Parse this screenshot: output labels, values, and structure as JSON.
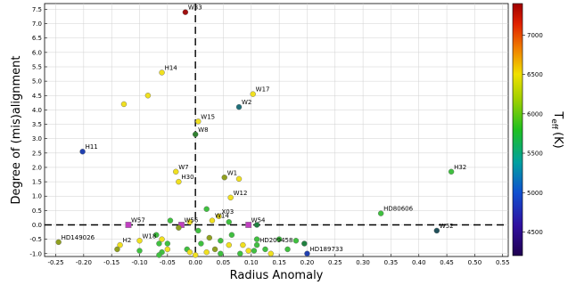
{
  "chart_data": {
    "type": "scatter",
    "title": "",
    "xlabel": "Radius Anomaly",
    "ylabel": "Degree of (mis)alignment",
    "xlim": [
      -0.27,
      0.56
    ],
    "ylim": [
      -1.1,
      7.7
    ],
    "xticks": [
      "-0.25",
      "-0.20",
      "-0.15",
      "-0.10",
      "-0.05",
      "0.00",
      "0.05",
      "0.10",
      "0.15",
      "0.20",
      "0.25",
      "0.30",
      "0.35",
      "0.40",
      "0.45",
      "0.50",
      "0.55"
    ],
    "yticks": [
      "-1.0",
      "-0.5",
      "0.0",
      "0.5",
      "1.0",
      "1.5",
      "2.0",
      "2.5",
      "3.0",
      "3.5",
      "4.0",
      "4.5",
      "5.0",
      "5.5",
      "6.0",
      "6.5",
      "7.0",
      "7.5"
    ],
    "horizontal_line_y": 0.0,
    "vertical_line_x": 0.0,
    "colorbar": {
      "label": "T_eff (K)",
      "label_main": "T",
      "label_sub": "eff",
      "label_unit": "(K)",
      "min": 4200,
      "max": 7400,
      "ticks": [
        "4500",
        "5000",
        "5500",
        "6000",
        "6500",
        "7000"
      ]
    },
    "points": [
      {
        "name": "W33",
        "x": -0.018,
        "y": 7.4,
        "color": "#a01010"
      },
      {
        "name": "H14",
        "x": -0.06,
        "y": 5.3,
        "color": "#f0e020"
      },
      {
        "name": "",
        "x": -0.085,
        "y": 4.5,
        "color": "#f0e020"
      },
      {
        "name": "",
        "x": -0.128,
        "y": 4.2,
        "color": "#f0e020"
      },
      {
        "name": "W17",
        "x": 0.103,
        "y": 4.55,
        "color": "#f0e020"
      },
      {
        "name": "W2",
        "x": 0.078,
        "y": 4.1,
        "color": "#20707a"
      },
      {
        "name": "W15",
        "x": 0.005,
        "y": 3.6,
        "color": "#f0e020"
      },
      {
        "name": "W8",
        "x": 0.0,
        "y": 3.15,
        "color": "#308030"
      },
      {
        "name": "H11",
        "x": -0.202,
        "y": 2.55,
        "color": "#2040b0"
      },
      {
        "name": "H32",
        "x": 0.458,
        "y": 1.85,
        "color": "#40c040"
      },
      {
        "name": "W7",
        "x": -0.035,
        "y": 1.85,
        "color": "#f0e020"
      },
      {
        "name": "H30",
        "x": -0.03,
        "y": 1.5,
        "color": "#f0e020"
      },
      {
        "name": "W1",
        "x": 0.052,
        "y": 1.65,
        "color": "#90a020"
      },
      {
        "name": "",
        "x": 0.078,
        "y": 1.6,
        "color": "#f0e020"
      },
      {
        "name": "W12",
        "x": 0.063,
        "y": 0.95,
        "color": "#f0e020"
      },
      {
        "name": "HD80606",
        "x": 0.332,
        "y": 0.4,
        "color": "#40c040"
      },
      {
        "name": "X03",
        "x": 0.042,
        "y": 0.3,
        "color": "#f0e020"
      },
      {
        "name": "W14",
        "x": 0.03,
        "y": 0.15,
        "color": "#f0e020"
      },
      {
        "name": "W57",
        "x": -0.12,
        "y": 0.0,
        "color": "#c040c0",
        "square": true
      },
      {
        "name": "W56",
        "x": -0.025,
        "y": 0.0,
        "color": "#c040c0",
        "square": true
      },
      {
        "name": "W54",
        "x": 0.095,
        "y": 0.0,
        "color": "#c040c0",
        "square": true
      },
      {
        "name": "W52",
        "x": 0.432,
        "y": -0.2,
        "color": "#20505a"
      },
      {
        "name": "HD149026",
        "x": -0.245,
        "y": -0.6,
        "color": "#90a020"
      },
      {
        "name": "H2",
        "x": -0.135,
        "y": -0.7,
        "color": "#f0e020"
      },
      {
        "name": "W18",
        "x": -0.1,
        "y": -0.55,
        "color": "#f0e020"
      },
      {
        "name": "HD209458",
        "x": 0.11,
        "y": -0.7,
        "color": "#40c040"
      },
      {
        "name": "HD189733",
        "x": 0.2,
        "y": -1.0,
        "color": "#2040b0"
      },
      {
        "name": "",
        "x": -0.045,
        "y": 0.15,
        "color": "#40c040"
      },
      {
        "name": "",
        "x": -0.01,
        "y": 0.1,
        "color": "#f0e020"
      },
      {
        "name": "",
        "x": 0.02,
        "y": 0.55,
        "color": "#40c040"
      },
      {
        "name": "",
        "x": 0.06,
        "y": 0.1,
        "color": "#40c040"
      },
      {
        "name": "",
        "x": 0.11,
        "y": 0.0,
        "color": "#208040"
      },
      {
        "name": "",
        "x": -0.03,
        "y": -0.1,
        "color": "#90a020"
      },
      {
        "name": "",
        "x": 0.005,
        "y": -0.2,
        "color": "#40c040"
      },
      {
        "name": "",
        "x": -0.07,
        "y": -0.35,
        "color": "#40c040"
      },
      {
        "name": "",
        "x": -0.06,
        "y": -0.5,
        "color": "#f0e020"
      },
      {
        "name": "",
        "x": -0.065,
        "y": -0.65,
        "color": "#40c040"
      },
      {
        "name": "",
        "x": -0.05,
        "y": -0.65,
        "color": "#40c040"
      },
      {
        "name": "",
        "x": -0.05,
        "y": -0.85,
        "color": "#f0e020"
      },
      {
        "name": "",
        "x": -0.06,
        "y": -0.95,
        "color": "#40c040"
      },
      {
        "name": "",
        "x": -0.065,
        "y": -1.05,
        "color": "#40c040"
      },
      {
        "name": "",
        "x": -0.1,
        "y": -0.9,
        "color": "#40c040"
      },
      {
        "name": "",
        "x": -0.14,
        "y": -0.85,
        "color": "#90a020"
      },
      {
        "name": "",
        "x": -0.015,
        "y": -0.85,
        "color": "#40c040"
      },
      {
        "name": "",
        "x": -0.01,
        "y": -0.95,
        "color": "#f0e020"
      },
      {
        "name": "",
        "x": 0.01,
        "y": -0.65,
        "color": "#40c040"
      },
      {
        "name": "",
        "x": 0.025,
        "y": -0.45,
        "color": "#90a020"
      },
      {
        "name": "",
        "x": 0.035,
        "y": -0.85,
        "color": "#90a020"
      },
      {
        "name": "",
        "x": 0.045,
        "y": -0.55,
        "color": "#40c040"
      },
      {
        "name": "",
        "x": 0.045,
        "y": -1.0,
        "color": "#40c040"
      },
      {
        "name": "",
        "x": 0.06,
        "y": -0.7,
        "color": "#f0e020"
      },
      {
        "name": "",
        "x": 0.065,
        "y": -0.35,
        "color": "#40c040"
      },
      {
        "name": "",
        "x": 0.08,
        "y": -1.0,
        "color": "#40c040"
      },
      {
        "name": "",
        "x": 0.085,
        "y": -0.7,
        "color": "#f0e020"
      },
      {
        "name": "",
        "x": 0.095,
        "y": -0.9,
        "color": "#f0e020"
      },
      {
        "name": "",
        "x": 0.105,
        "y": -0.9,
        "color": "#40c040"
      },
      {
        "name": "",
        "x": 0.11,
        "y": -0.5,
        "color": "#40c040"
      },
      {
        "name": "",
        "x": 0.125,
        "y": -0.85,
        "color": "#40c040"
      },
      {
        "name": "",
        "x": 0.135,
        "y": -1.0,
        "color": "#f0e020"
      },
      {
        "name": "",
        "x": 0.15,
        "y": -0.5,
        "color": "#40c040"
      },
      {
        "name": "",
        "x": 0.165,
        "y": -0.85,
        "color": "#40c040"
      },
      {
        "name": "",
        "x": 0.18,
        "y": -0.55,
        "color": "#40c040"
      },
      {
        "name": "",
        "x": 0.195,
        "y": -0.65,
        "color": "#208040"
      },
      {
        "name": "",
        "x": 0.0,
        "y": -1.05,
        "color": "#f0e020"
      },
      {
        "name": "",
        "x": 0.02,
        "y": -0.95,
        "color": "#f0e020"
      }
    ]
  }
}
